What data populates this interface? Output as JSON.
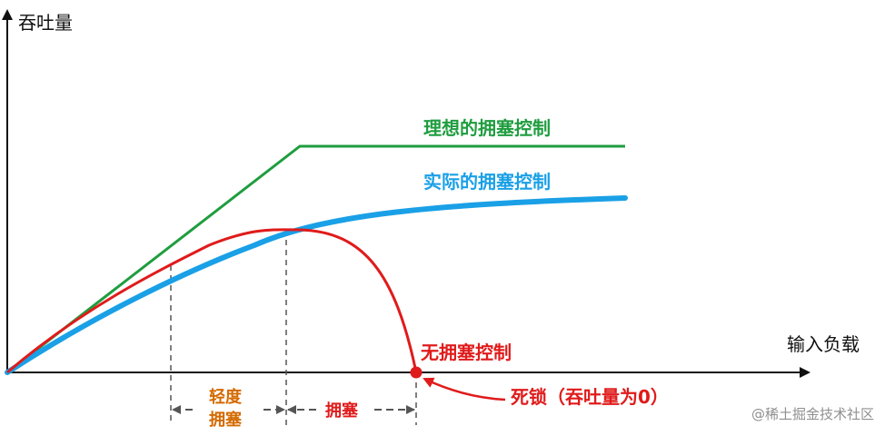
{
  "axes": {
    "y_label": "吞吐量",
    "x_label": "输入负载"
  },
  "curves": {
    "ideal": {
      "label": "理想的拥塞控制",
      "color": "#1f9d3f"
    },
    "actual": {
      "label": "实际的拥塞控制",
      "color": "#1aa0e6"
    },
    "none": {
      "label": "无拥塞控制",
      "color": "#e01b1b"
    }
  },
  "regions": {
    "light": {
      "label_line1": "轻度",
      "label_line2": "拥塞",
      "color": "#d46a00"
    },
    "congestion": {
      "label": "拥塞",
      "color": "#e01b1b"
    }
  },
  "deadlock": {
    "label": "死锁（吞吐量为0）",
    "color": "#e01b1b"
  },
  "watermark": "@稀土掘金技术社区"
}
